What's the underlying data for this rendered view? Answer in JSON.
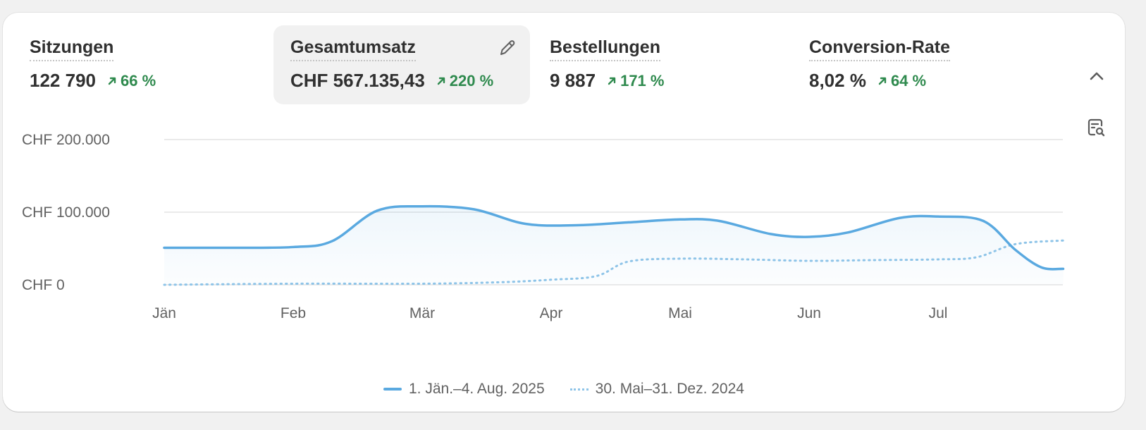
{
  "metrics": [
    {
      "label": "Sitzungen",
      "value": "122 790",
      "delta": "66 %",
      "selected": false
    },
    {
      "label": "Gesamtumsatz",
      "value": "CHF 567.135,43",
      "delta": "220 %",
      "selected": true
    },
    {
      "label": "Bestellungen",
      "value": "9 887",
      "delta": "171 %",
      "selected": false
    },
    {
      "label": "Conversion-Rate",
      "value": "8,02 %",
      "delta": "64 %",
      "selected": false
    }
  ],
  "icons": {
    "edit": "pencil-icon",
    "collapse": "chevron-up-icon",
    "report": "report-search-icon",
    "delta": "arrow-up-right-icon"
  },
  "colors": {
    "current_line": "#5aa9e0",
    "previous_line": "#8ec4e8",
    "delta_positive": "#2f8a4e",
    "selected_bg": "#f1f1f1"
  },
  "chart_data": {
    "type": "line",
    "categories": [
      "Jän",
      "Feb",
      "Mär",
      "Apr",
      "Mai",
      "Jun",
      "Jul"
    ],
    "y_ticks": [
      "CHF 200.000",
      "CHF 100.000",
      "CHF 0"
    ],
    "y_tick_values": [
      200000,
      100000,
      0
    ],
    "ylim": [
      0,
      200000
    ],
    "grid": true,
    "legend_position": "bottom-center",
    "series": [
      {
        "name": "1. Jän.–4. Aug. 2025",
        "style": "solid",
        "x": [
          0,
          0.5,
          1,
          1.3,
          1.65,
          2,
          2.4,
          2.8,
          3.2,
          3.6,
          4,
          4.3,
          4.7,
          5,
          5.3,
          5.7,
          6,
          6.35,
          6.6,
          6.8,
          7
        ],
        "values": [
          51000,
          51000,
          52000,
          60000,
          102000,
          108000,
          104000,
          84000,
          82000,
          86000,
          90000,
          88000,
          70000,
          66000,
          72000,
          92000,
          94000,
          88000,
          48000,
          24000,
          22000
        ]
      },
      {
        "name": "30. Mai–31. Dez. 2024",
        "style": "dotted",
        "x": [
          0,
          1,
          2,
          2.6,
          3,
          3.35,
          3.6,
          4,
          4.5,
          5,
          5.5,
          6,
          6.3,
          6.6,
          7
        ],
        "values": [
          0,
          1500,
          1500,
          3500,
          7000,
          12000,
          32000,
          36000,
          35000,
          33000,
          34000,
          35000,
          38000,
          56000,
          61000
        ]
      }
    ]
  }
}
